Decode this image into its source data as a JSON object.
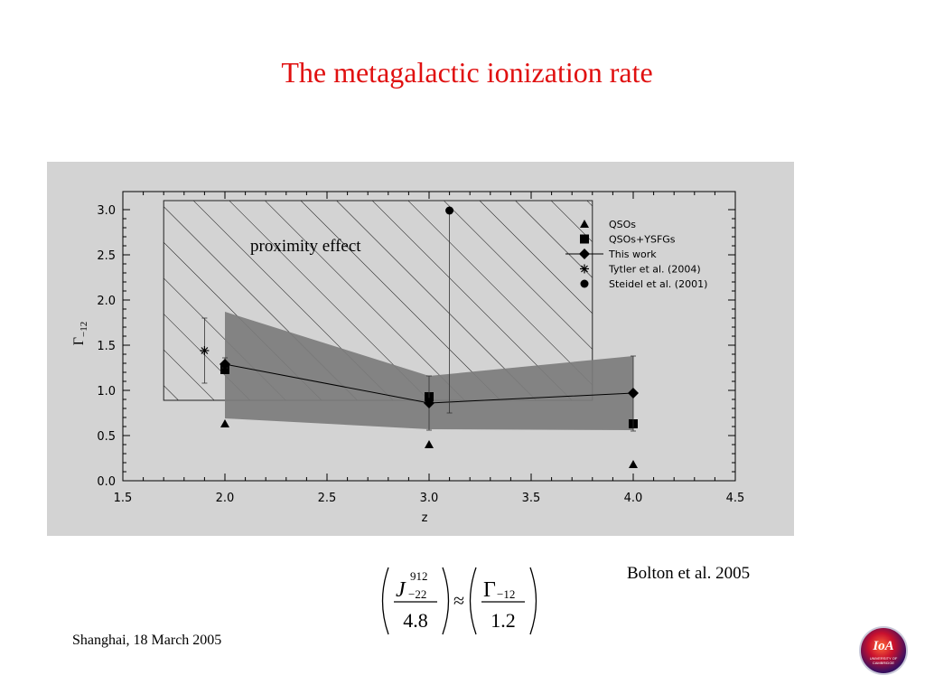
{
  "title": "The metagalactic ionization rate",
  "credit": "Bolton et al. 2005",
  "footer": "Shanghai, 18 March  2005",
  "logo": {
    "word": "IoA",
    "sub_line1": "UNIVERSITY OF",
    "sub_line2": "CAMBRIDGE"
  },
  "formula": {
    "left_num_symbol": "J",
    "left_num_sup": "912",
    "left_num_sub": "−22",
    "left_den": "4.8",
    "relation": "≈",
    "right_num_symbol": "Γ",
    "right_num_sub": "−12",
    "right_den": "1.2"
  },
  "chart_data": {
    "type": "scatter",
    "title": "",
    "xlabel": "z",
    "ylabel_symbol": "Γ",
    "ylabel_sub": "−12",
    "xlim": [
      1.5,
      4.5
    ],
    "ylim": [
      0.0,
      3.2
    ],
    "xticks": [
      1.5,
      2.0,
      2.5,
      3.0,
      3.5,
      4.0,
      4.5
    ],
    "xtick_labels": [
      "1.5",
      "2.0",
      "2.5",
      "3.0",
      "3.5",
      "4.0",
      "4.5"
    ],
    "yticks": [
      0.0,
      0.5,
      1.0,
      1.5,
      2.0,
      2.5,
      3.0
    ],
    "ytick_labels": [
      "0.0",
      "0.5",
      "1.0",
      "1.5",
      "2.0",
      "2.5",
      "3.0"
    ],
    "hatched_region": {
      "x": [
        1.7,
        3.8
      ],
      "y": [
        0.89,
        3.1
      ],
      "label": "proximity effect"
    },
    "shaded_band": {
      "x": [
        2.0,
        3.0,
        4.0
      ],
      "upper": [
        1.87,
        1.16,
        1.38
      ],
      "lower": [
        0.69,
        0.57,
        0.56
      ]
    },
    "series": [
      {
        "name": "QSOs",
        "marker": "triangle",
        "x": [
          2.0,
          3.0,
          4.0
        ],
        "y": [
          0.63,
          0.4,
          0.18
        ]
      },
      {
        "name": "QSOs+YSFGs",
        "marker": "square",
        "x": [
          2.0,
          3.0,
          4.0
        ],
        "y": [
          1.23,
          0.93,
          0.63
        ]
      },
      {
        "name": "This work",
        "marker": "diamond",
        "x": [
          2.0,
          3.0,
          4.0
        ],
        "y": [
          1.29,
          0.86,
          0.97
        ],
        "line": true,
        "errors": [
          [
            2.0,
            1.25,
            1.36
          ],
          [
            3.0,
            0.56,
            1.16
          ],
          [
            4.0,
            0.55,
            1.38
          ]
        ]
      },
      {
        "name": "Tytler et al. (2004)",
        "marker": "star",
        "x": [
          1.9
        ],
        "y": [
          1.44
        ],
        "errors": [
          [
            1.9,
            1.08,
            1.8
          ]
        ]
      },
      {
        "name": "Steidel et al. (2001)",
        "marker": "circle",
        "x": [
          3.1
        ],
        "y": [
          2.99
        ],
        "errors": [
          [
            3.1,
            0.75,
            2.99
          ]
        ]
      }
    ],
    "legend": {
      "position": "top-right"
    },
    "background": "#d3d3d3",
    "band_color": "#7c7c7c"
  }
}
